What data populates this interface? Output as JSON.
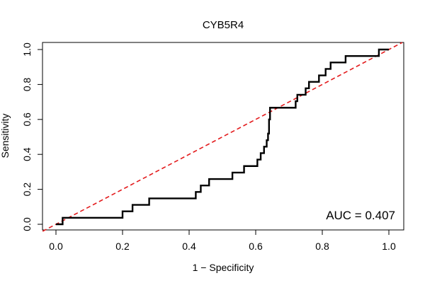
{
  "chart_data": {
    "type": "line",
    "title": "CYB5R4",
    "xlabel": "1 − Specificity",
    "ylabel": "Sensitivity",
    "xlim": [
      0,
      1
    ],
    "ylim": [
      0,
      1
    ],
    "x_ticks": [
      "0.0",
      "0.2",
      "0.4",
      "0.6",
      "0.8",
      "1.0"
    ],
    "y_ticks": [
      "0.0",
      "0.2",
      "0.4",
      "0.6",
      "0.8",
      "1.0"
    ],
    "annotation": "AUC = 0.407",
    "grid": false,
    "series": [
      {
        "style": "solid",
        "color": "#000000",
        "x": [
          0.0,
          0.02,
          0.02,
          0.2,
          0.2,
          0.23,
          0.23,
          0.28,
          0.28,
          0.42,
          0.42,
          0.435,
          0.435,
          0.46,
          0.46,
          0.53,
          0.53,
          0.565,
          0.565,
          0.605,
          0.605,
          0.615,
          0.615,
          0.625,
          0.625,
          0.633,
          0.633,
          0.637,
          0.637,
          0.64,
          0.64,
          0.643,
          0.643,
          0.72,
          0.72,
          0.725,
          0.725,
          0.75,
          0.75,
          0.76,
          0.76,
          0.79,
          0.79,
          0.81,
          0.81,
          0.825,
          0.825,
          0.87,
          0.87,
          0.97,
          0.97,
          1.0
        ],
        "y": [
          0.0,
          0.0,
          0.037,
          0.037,
          0.074,
          0.074,
          0.111,
          0.111,
          0.148,
          0.148,
          0.185,
          0.185,
          0.222,
          0.222,
          0.259,
          0.259,
          0.296,
          0.296,
          0.333,
          0.333,
          0.37,
          0.37,
          0.407,
          0.407,
          0.444,
          0.444,
          0.481,
          0.481,
          0.519,
          0.519,
          0.6,
          0.6,
          0.667,
          0.667,
          0.704,
          0.704,
          0.741,
          0.741,
          0.778,
          0.778,
          0.815,
          0.815,
          0.852,
          0.852,
          0.889,
          0.889,
          0.926,
          0.926,
          0.963,
          0.963,
          1.0,
          1.0
        ]
      },
      {
        "style": "dashed",
        "color": "#e31a1c",
        "x": [
          0,
          1
        ],
        "y": [
          0,
          1
        ]
      }
    ]
  }
}
